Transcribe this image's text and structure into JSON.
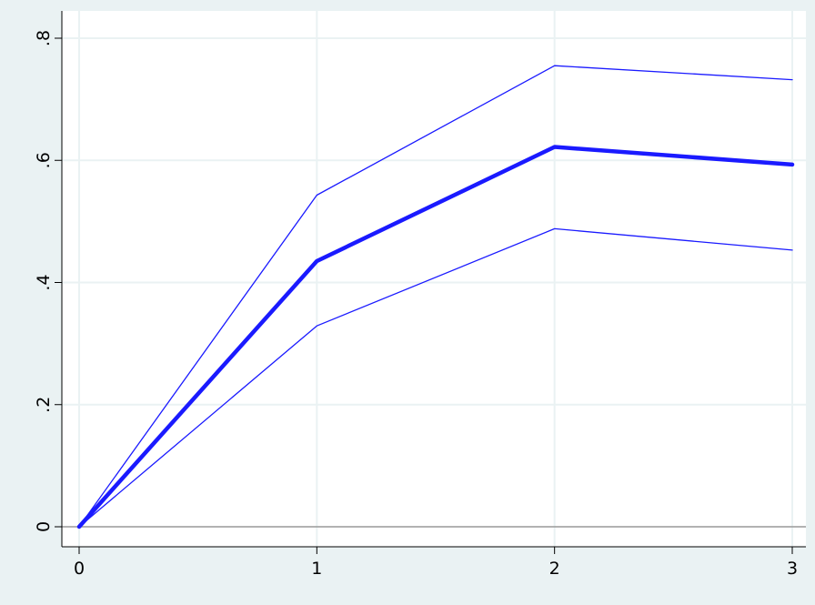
{
  "chart_data": {
    "type": "line",
    "title": "",
    "xlabel": "",
    "ylabel": "",
    "xlim": [
      0,
      3
    ],
    "ylim": [
      0,
      0.8
    ],
    "grid": true,
    "legend": "none",
    "x_ticks": [
      0,
      1,
      2,
      3
    ],
    "x_tick_labels": [
      "0",
      "1",
      "2",
      "3"
    ],
    "y_ticks": [
      0,
      0.2,
      0.4,
      0.6,
      0.8
    ],
    "y_tick_labels": [
      "0",
      ".2",
      ".4",
      ".6",
      ".8"
    ],
    "x": [
      0,
      1,
      2,
      3
    ],
    "series": [
      {
        "values": [
          0,
          0.543,
          0.755,
          0.732
        ],
        "color": "#1a1aff",
        "style": "thin"
      },
      {
        "values": [
          0,
          0.435,
          0.622,
          0.593
        ],
        "color": "#1a1aff",
        "style": "thick"
      },
      {
        "values": [
          0,
          0.329,
          0.488,
          0.453
        ],
        "color": "#1a1aff",
        "style": "thin"
      }
    ],
    "colors": {
      "background": "#eaf2f3",
      "plot_background": "#ffffff",
      "gridline": "#eaf2f3",
      "axis": "#000000",
      "zero_line": "#999999"
    }
  }
}
